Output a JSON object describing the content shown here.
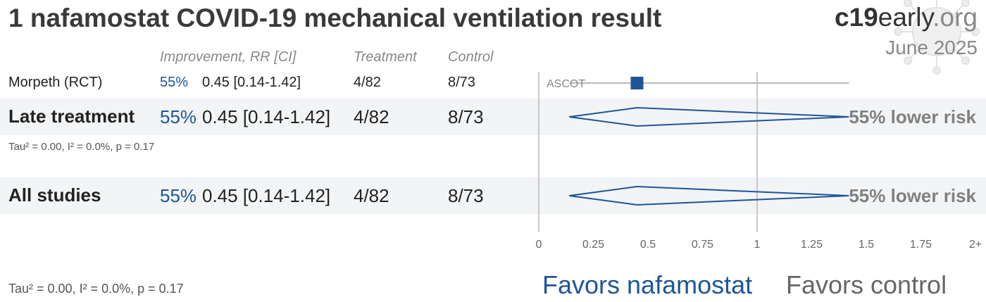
{
  "title": "1 nafamostat COVID-19 mechanical ventilation result",
  "brand": {
    "part1": "c19",
    "part2": "early",
    "part3": ".org"
  },
  "date": "June 2025",
  "headers": {
    "improvement": "Improvement, RR [CI]",
    "treatment": "Treatment",
    "control": "Control"
  },
  "studies": [
    {
      "name": "Morpeth (RCT)",
      "pct": "55%",
      "rr_text": "0.45 [0.14-1.42]",
      "treatment": "4/82",
      "control": "8/73",
      "label": "ASCOT"
    }
  ],
  "late": {
    "name": "Late treatment",
    "pct": "55%",
    "rr_text": "0.45 [0.14-1.42]",
    "treatment": "4/82",
    "control": "8/73",
    "risk": "55% lower risk",
    "stats": "Tau² = 0.00, I² = 0.0%, p = 0.17"
  },
  "all": {
    "name": "All studies",
    "pct": "55%",
    "rr_text": "0.45 [0.14-1.42]",
    "treatment": "4/82",
    "control": "8/73",
    "risk": "55% lower risk"
  },
  "footer_stats": "Tau² = 0.00, I² = 0.0%, p = 0.17",
  "favors": {
    "left": "Favors nafamostat",
    "right": "Favors control"
  },
  "colors": {
    "accent": "#1f5597",
    "line": "#b8b8b8",
    "band": "#f2f4f6"
  },
  "chart_data": {
    "type": "forest",
    "xlim": [
      0,
      2
    ],
    "ticks": [
      {
        "v": 0,
        "label": "0"
      },
      {
        "v": 0.25,
        "label": "0.25"
      },
      {
        "v": 0.5,
        "label": "0.5"
      },
      {
        "v": 0.75,
        "label": "0.75"
      },
      {
        "v": 1,
        "label": "1"
      },
      {
        "v": 1.25,
        "label": "1.25"
      },
      {
        "v": 1.5,
        "label": "1.5"
      },
      {
        "v": 1.75,
        "label": "1.75"
      },
      {
        "v": 2,
        "label": "2+"
      }
    ],
    "studies": [
      {
        "name": "Morpeth (RCT)",
        "label": "ASCOT",
        "rr": 0.45,
        "lo": 0.14,
        "hi": 1.42
      }
    ],
    "pooled": [
      {
        "name": "Late treatment",
        "rr": 0.45,
        "lo": 0.14,
        "hi": 1.42
      },
      {
        "name": "All studies",
        "rr": 0.45,
        "lo": 0.14,
        "hi": 1.42
      }
    ]
  }
}
